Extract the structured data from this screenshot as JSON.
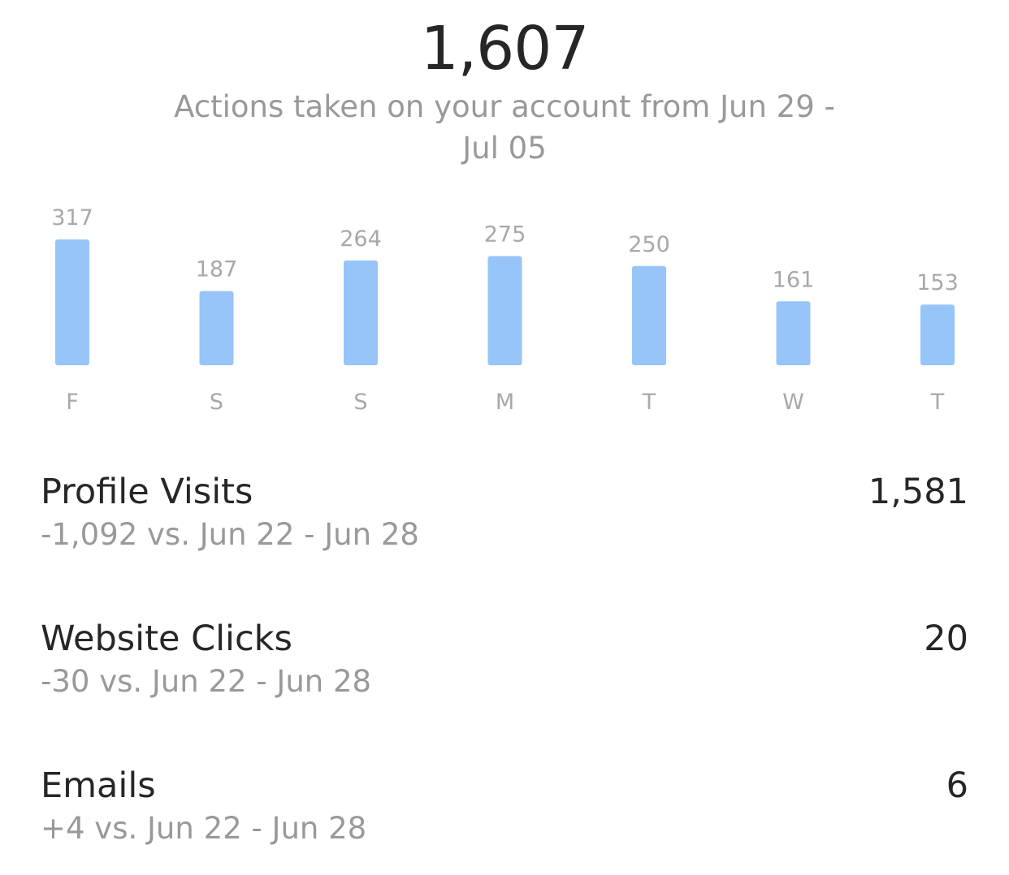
{
  "header": {
    "total": "1,607",
    "subtitle": "Actions taken on your account from Jun 29 - Jul 05"
  },
  "colors": {
    "bar": "#97c4f9",
    "value_label": "#a8a8a8",
    "day_label": "#a8a8a8",
    "primary_text": "#262626",
    "secondary_text": "#999999"
  },
  "chart_data": {
    "type": "bar",
    "categories": [
      "F",
      "S",
      "S",
      "M",
      "T",
      "W",
      "T"
    ],
    "values": [
      317,
      187,
      264,
      275,
      250,
      161,
      153
    ],
    "value_labels": [
      "317",
      "187",
      "264",
      "275",
      "250",
      "161",
      "153"
    ],
    "title": "",
    "xlabel": "",
    "ylabel": "",
    "grid": false
  },
  "metrics": [
    {
      "label": "Profile Visits",
      "value": "1,581",
      "compare": "-1,092 vs. Jun 22 - Jun 28"
    },
    {
      "label": "Website Clicks",
      "value": "20",
      "compare": "-30 vs. Jun 22 - Jun 28"
    },
    {
      "label": "Emails",
      "value": "6",
      "compare": "+4 vs. Jun 22 - Jun 28"
    }
  ]
}
